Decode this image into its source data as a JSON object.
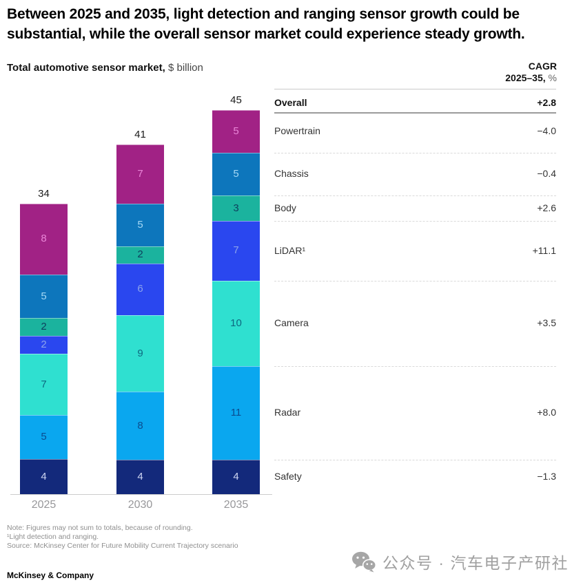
{
  "header": {
    "title_line1": "Between 2025 and 2035, light detection and ranging sensor growth could be",
    "title_line2": "substantial, while the overall sensor market could experience steady growth."
  },
  "chart": {
    "subtitle_bold": "Total automotive sensor market,",
    "subtitle_unit": "$ billion"
  },
  "cagr_header": {
    "line1": "CAGR",
    "line2": "2025–35,",
    "line2_unit": "%"
  },
  "chart_data": {
    "type": "bar",
    "stacked": true,
    "title": "Total automotive sensor market, $ billion",
    "xlabel": "",
    "ylabel": "$ billion",
    "grid": false,
    "legend_position": "right-table",
    "categories": [
      "2025",
      "2030",
      "2035"
    ],
    "totals": [
      34,
      41,
      45
    ],
    "overall": {
      "label": "Overall",
      "cagr": "+2.8"
    },
    "cagr_column_header": "CAGR 2025–35, %",
    "series": [
      {
        "name": "Powertrain",
        "values": [
          8,
          7,
          5
        ],
        "cagr": "−4.0",
        "color": "#A12285",
        "label_color": "#EA86D8"
      },
      {
        "name": "Chassis",
        "values": [
          5,
          5,
          5
        ],
        "cagr": "−0.4",
        "color": "#0D76BC",
        "label_color": "#A5D8F5"
      },
      {
        "name": "Body",
        "values": [
          2,
          2,
          3
        ],
        "cagr": "+2.6",
        "color": "#1BB39E",
        "label_color": "#0E3F5E"
      },
      {
        "name": "LiDAR¹",
        "values": [
          2,
          6,
          7
        ],
        "cagr": "+11.1",
        "color": "#2A47EF",
        "label_color": "#8CA4EC"
      },
      {
        "name": "Camera",
        "values": [
          7,
          9,
          10
        ],
        "cagr": "+3.5",
        "color": "#2FE0D0",
        "label_color": "#0E6880"
      },
      {
        "name": "Radar",
        "values": [
          5,
          8,
          11
        ],
        "cagr": "+8.0",
        "color": "#0AA7EF",
        "label_color": "#0B4C8F"
      },
      {
        "name": "Safety",
        "values": [
          4,
          4,
          4
        ],
        "cagr": "−1.3",
        "color": "#13297B",
        "label_color": "#CFD6F2"
      }
    ]
  },
  "footnotes": {
    "note": "Note: Figures may not sum to totals, because of rounding.",
    "fn1": "¹Light detection and ranging.",
    "source": "Source: McKinsey Center for Future Mobility Current Trajectory scenario"
  },
  "brand": "McKinsey & Company",
  "watermark": {
    "icon": "wechat-icon",
    "text": "公众号 · 汽车电子产研社"
  }
}
